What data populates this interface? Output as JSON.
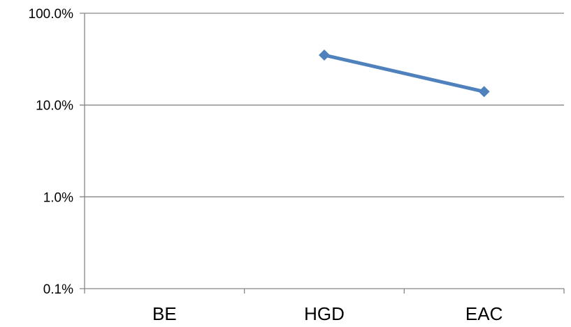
{
  "chart_data": {
    "type": "line",
    "title": "",
    "xlabel": "",
    "ylabel": "",
    "y_scale": "log",
    "ylim": [
      0.1,
      100
    ],
    "y_ticks": [
      0.1,
      1,
      10,
      100
    ],
    "y_tick_labels": [
      "0.1%",
      "1.0%",
      "10.0%",
      "100.0%"
    ],
    "categories": [
      "BE",
      "HGD",
      "EAC"
    ],
    "grid": true,
    "legend": "none",
    "series": [
      {
        "values": [
          null,
          35,
          14
        ],
        "color": "#4F81BD",
        "marker": "diamond"
      }
    ]
  }
}
